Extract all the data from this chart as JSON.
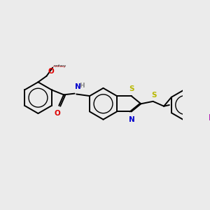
{
  "background_color": "#ebebeb",
  "bond_color": "#000000",
  "atom_colors": {
    "S": "#b8b800",
    "N": "#0000cc",
    "O": "#dd0000",
    "H": "#888888",
    "I": "#aa00aa",
    "C": "#000000"
  },
  "figsize": [
    3.0,
    3.0
  ],
  "dpi": 100,
  "bond_lw": 1.4,
  "font_size": 7.5
}
